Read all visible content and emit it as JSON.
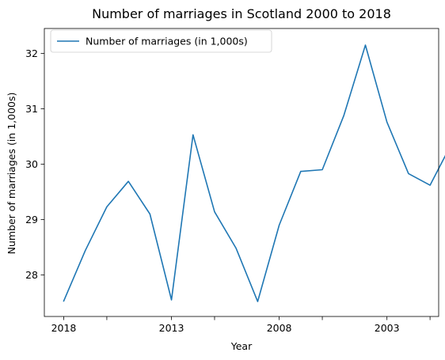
{
  "chart_data": {
    "type": "line",
    "title": "Number of marriages in Scotland 2000 to 2018",
    "xlabel": "Year",
    "ylabel": "Number of marriages (in 1,000s)",
    "x": [
      2018,
      2017,
      2016,
      2015,
      2014,
      2013,
      2012,
      2011,
      2010,
      2009,
      2008,
      2007,
      2006,
      2005,
      2004,
      2003,
      2002,
      2001,
      2000
    ],
    "x_tick_labels": [
      {
        "value": 2018,
        "label": "2018"
      },
      {
        "value": 2013,
        "label": "2013"
      },
      {
        "value": 2008,
        "label": "2008"
      },
      {
        "value": 2003,
        "label": "2003"
      }
    ],
    "x_minor_ticks": [
      2016,
      2011,
      2006,
      2001
    ],
    "x_reversed": true,
    "xlim": [
      2018.9,
      2000.6
    ],
    "series": [
      {
        "name": "Number of marriages (in 1,000s)",
        "color": "#1f77b4",
        "values": [
          27.53,
          28.44,
          29.23,
          29.69,
          29.1,
          27.55,
          30.53,
          29.14,
          28.48,
          27.52,
          28.9,
          29.87,
          29.9,
          30.88,
          32.15,
          30.76,
          29.83,
          29.62,
          30.37
        ]
      }
    ],
    "yticks": [
      28,
      29,
      30,
      31,
      32
    ],
    "ylim": [
      27.25,
      32.45
    ],
    "grid": false,
    "legend": "upper-left"
  }
}
